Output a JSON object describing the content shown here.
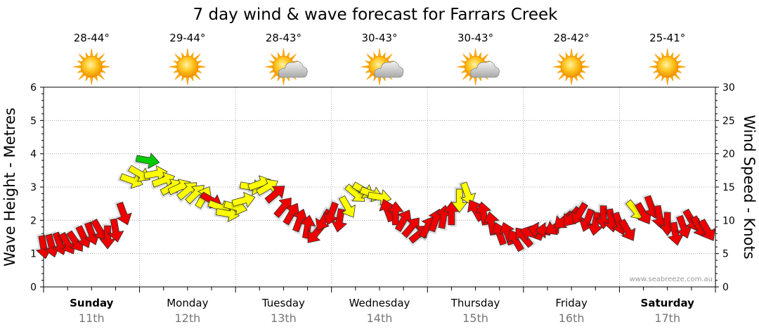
{
  "chart_data": {
    "type": "line",
    "title": "7 day wind & wave forecast for Farrars Creek",
    "ylabel_left": "Wave Height - Metres",
    "ylabel_right": "Wind Speed - Knots",
    "ylim_left": [
      0,
      6
    ],
    "ylim_right": [
      0,
      30
    ],
    "yticks_left": [
      "0",
      "1",
      "2",
      "3",
      "4",
      "5",
      "6"
    ],
    "yticks_right": [
      "0",
      "5",
      "10",
      "15",
      "20",
      "25",
      "30"
    ],
    "grid": true,
    "credit": "www.seabreeze.com.au",
    "days": [
      {
        "name": "Sunday",
        "date": "11th",
        "temp": "28-44°",
        "icon": "sun-icon",
        "bold": true
      },
      {
        "name": "Monday",
        "date": "12th",
        "temp": "29-44°",
        "icon": "sun-icon",
        "bold": false
      },
      {
        "name": "Tuesday",
        "date": "13th",
        "temp": "28-43°",
        "icon": "sun-cloud-icon",
        "bold": false
      },
      {
        "name": "Wednesday",
        "date": "14th",
        "temp": "30-43°",
        "icon": "sun-cloud-icon",
        "bold": false
      },
      {
        "name": "Thursday",
        "date": "15th",
        "temp": "30-43°",
        "icon": "sun-cloud-icon",
        "bold": false
      },
      {
        "name": "Friday",
        "date": "16th",
        "temp": "28-42°",
        "icon": "sun-icon",
        "bold": false
      },
      {
        "name": "Saturday",
        "date": "17th",
        "temp": "25-41°",
        "icon": "sun-icon",
        "bold": true
      }
    ],
    "colors": {
      "red": "#ee0000",
      "yellow": "#ffff00",
      "green": "#00cc00",
      "grid": "#999999"
    },
    "series": [
      {
        "name": "Wind Speed",
        "axis": "right",
        "unit": "knots",
        "x_hours": [
          0,
          2,
          4,
          6,
          8,
          10,
          12,
          14,
          16,
          18,
          20,
          22,
          24,
          26,
          28,
          30,
          32,
          34,
          36,
          38,
          40,
          42,
          44,
          46,
          48,
          50,
          52,
          54,
          56,
          58,
          60,
          62,
          64,
          66,
          68,
          70,
          72,
          74,
          76,
          78,
          80,
          82,
          84,
          86,
          88,
          90,
          92,
          94,
          96,
          98,
          100,
          102,
          104,
          106,
          108,
          110,
          112,
          114,
          116,
          118,
          120,
          122,
          124,
          126,
          128,
          130,
          132,
          134,
          136,
          138,
          140,
          142,
          144,
          146,
          148,
          150,
          152,
          154,
          156,
          158,
          160,
          162,
          164,
          166
        ],
        "values": [
          6,
          6.2,
          6.5,
          6.5,
          6.8,
          7.5,
          8,
          8.5,
          7.5,
          8.5,
          11,
          16,
          17,
          19,
          17,
          16,
          15,
          15,
          14.5,
          14,
          13.5,
          13,
          12,
          11,
          12,
          13,
          15,
          15.5,
          15,
          14,
          12,
          11,
          10,
          9,
          8,
          10,
          11,
          10,
          12,
          14,
          14.5,
          14,
          13.5,
          11.5,
          11,
          10,
          9,
          8,
          9,
          10,
          10.5,
          11,
          13,
          14,
          11.5,
          11,
          9.5,
          8,
          8,
          7,
          7.5,
          8,
          8.5,
          8.5,
          9,
          10,
          10.5,
          11,
          10,
          9.5,
          10.5,
          10,
          9.5,
          8.5,
          11.5,
          11,
          12,
          10.5,
          9.5,
          8,
          9,
          10,
          9,
          8.5
        ],
        "directions_deg": [
          80,
          75,
          70,
          60,
          55,
          65,
          70,
          60,
          90,
          80,
          70,
          20,
          30,
          10,
          350,
          340,
          330,
          335,
          320,
          315,
          300,
          30,
          20,
          10,
          15,
          345,
          10,
          340,
          330,
          320,
          310,
          300,
          290,
          280,
          130,
          120,
          110,
          100,
          60,
          40,
          30,
          20,
          10,
          250,
          270,
          300,
          310,
          320,
          300,
          290,
          280,
          270,
          90,
          70,
          240,
          260,
          260,
          250,
          250,
          240,
          230,
          200,
          190,
          180,
          150,
          140,
          130,
          120,
          110,
          100,
          90,
          80,
          70,
          60,
          50,
          60,
          70,
          80,
          90,
          80,
          70,
          60,
          60,
          60
        ],
        "colors": [
          "red",
          "red",
          "red",
          "red",
          "red",
          "red",
          "red",
          "red",
          "red",
          "red",
          "red",
          "yellow",
          "yellow",
          "green",
          "yellow",
          "yellow",
          "yellow",
          "yellow",
          "yellow",
          "yellow",
          "yellow",
          "red",
          "yellow",
          "yellow",
          "yellow",
          "yellow",
          "yellow",
          "yellow",
          "yellow",
          "red",
          "red",
          "red",
          "red",
          "red",
          "red",
          "red",
          "red",
          "red",
          "yellow",
          "yellow",
          "yellow",
          "yellow",
          "yellow",
          "red",
          "red",
          "red",
          "red",
          "red",
          "red",
          "red",
          "red",
          "red",
          "yellow",
          "yellow",
          "red",
          "red",
          "red",
          "red",
          "red",
          "red",
          "red",
          "red",
          "red",
          "red",
          "red",
          "red",
          "red",
          "red",
          "red",
          "red",
          "red",
          "red",
          "red",
          "red",
          "yellow",
          "red",
          "red",
          "red",
          "red",
          "red",
          "red",
          "red",
          "red",
          "red"
        ]
      }
    ]
  }
}
